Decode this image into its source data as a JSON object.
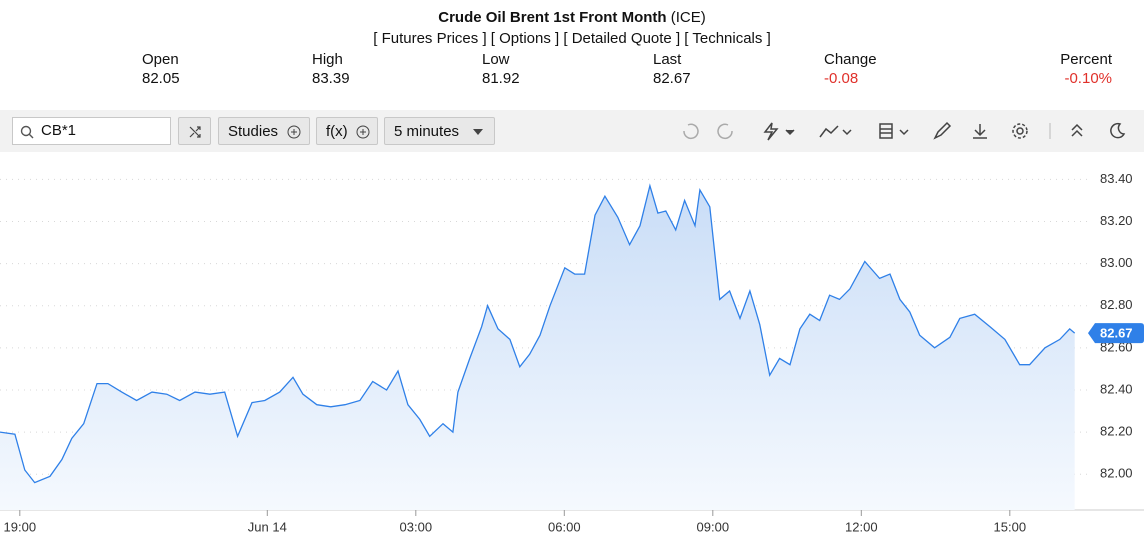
{
  "header": {
    "title": "Crude Oil Brent 1st Front Month",
    "exchange": "(ICE)",
    "links": [
      "Futures Prices",
      "Options",
      "Detailed Quote",
      "Technicals"
    ],
    "stats": [
      {
        "label": "Open",
        "value": "82.05"
      },
      {
        "label": "High",
        "value": "83.39"
      },
      {
        "label": "Low",
        "value": "81.92"
      },
      {
        "label": "Last",
        "value": "82.67"
      },
      {
        "label": "Change",
        "value": "-0.08"
      },
      {
        "label": "Percent",
        "value": "-0.10%"
      }
    ]
  },
  "toolbar": {
    "search": "CB*1",
    "studies": "Studies",
    "fx": "f(x)",
    "interval": "5 minutes"
  },
  "chart_data": {
    "type": "area",
    "color": "#2f80e8",
    "grid": true,
    "x": [
      18.6,
      18.9,
      19.1,
      19.3,
      19.61,
      19.85,
      20.05,
      20.29,
      20.56,
      20.78,
      21.06,
      21.36,
      21.67,
      21.97,
      22.23,
      22.54,
      22.84,
      23.14,
      23.4,
      23.69,
      23.95,
      24.25,
      24.52,
      24.72,
      25.0,
      25.28,
      25.57,
      25.87,
      26.13,
      26.41,
      26.64,
      26.84,
      27.08,
      27.28,
      27.55,
      27.75,
      27.85,
      28.09,
      28.33,
      28.45,
      28.66,
      28.9,
      29.1,
      29.3,
      29.51,
      29.71,
      30.01,
      30.21,
      30.41,
      30.62,
      30.82,
      31.08,
      31.32,
      31.53,
      31.73,
      31.89,
      32.05,
      32.25,
      32.43,
      32.64,
      32.74,
      32.94,
      33.14,
      33.34,
      33.55,
      33.75,
      33.95,
      34.15,
      34.35,
      34.56,
      34.76,
      34.96,
      35.16,
      35.36,
      35.56,
      35.77,
      36.07,
      36.37,
      36.58,
      36.78,
      36.98,
      37.18,
      37.48,
      37.79,
      37.99,
      38.29,
      38.6,
      38.9,
      39.2,
      39.4,
      39.71,
      40.01,
      40.21,
      40.31
    ],
    "series": [
      {
        "values": [
          82.2,
          82.19,
          82.02,
          81.96,
          81.99,
          82.07,
          82.17,
          82.24,
          82.43,
          82.43,
          82.39,
          82.35,
          82.39,
          82.38,
          82.35,
          82.39,
          82.38,
          82.39,
          82.18,
          82.34,
          82.35,
          82.39,
          82.46,
          82.38,
          82.33,
          82.32,
          82.33,
          82.35,
          82.44,
          82.4,
          82.49,
          82.33,
          82.26,
          82.18,
          82.24,
          82.2,
          82.39,
          82.55,
          82.7,
          82.8,
          82.69,
          82.64,
          82.51,
          82.57,
          82.66,
          82.8,
          82.98,
          82.95,
          82.95,
          83.23,
          83.32,
          83.22,
          83.09,
          83.18,
          83.37,
          83.24,
          83.25,
          83.16,
          83.3,
          83.18,
          83.35,
          83.27,
          82.83,
          82.87,
          82.74,
          82.87,
          82.71,
          82.47,
          82.55,
          82.52,
          82.69,
          82.76,
          82.73,
          82.85,
          82.83,
          82.88,
          83.01,
          82.93,
          82.95,
          82.83,
          82.77,
          82.66,
          82.6,
          82.65,
          82.74,
          82.76,
          82.7,
          82.64,
          82.52,
          82.52,
          82.6,
          82.64,
          82.69,
          82.67
        ]
      }
    ],
    "xlim": [
      18.6,
      40.62
    ],
    "xticks": [
      {
        "value": 19,
        "label": "19:00"
      },
      {
        "value": 24,
        "label": "Jun 14"
      },
      {
        "value": 27,
        "label": "03:00"
      },
      {
        "value": 30,
        "label": "06:00"
      },
      {
        "value": 33,
        "label": "09:00"
      },
      {
        "value": 36,
        "label": "12:00"
      },
      {
        "value": 39,
        "label": "15:00"
      }
    ],
    "ylim": [
      81.83,
      83.53
    ],
    "yticks": [
      {
        "value": 82,
        "label": "82.00"
      },
      {
        "value": 82.2,
        "label": "82.20"
      },
      {
        "value": 82.4,
        "label": "82.40"
      },
      {
        "value": 82.6,
        "label": "82.60"
      },
      {
        "value": 82.8,
        "label": "82.80"
      },
      {
        "value": 83,
        "label": "83.00"
      },
      {
        "value": 83.2,
        "label": "83.20"
      },
      {
        "value": 83.4,
        "label": "83.40"
      }
    ]
  }
}
